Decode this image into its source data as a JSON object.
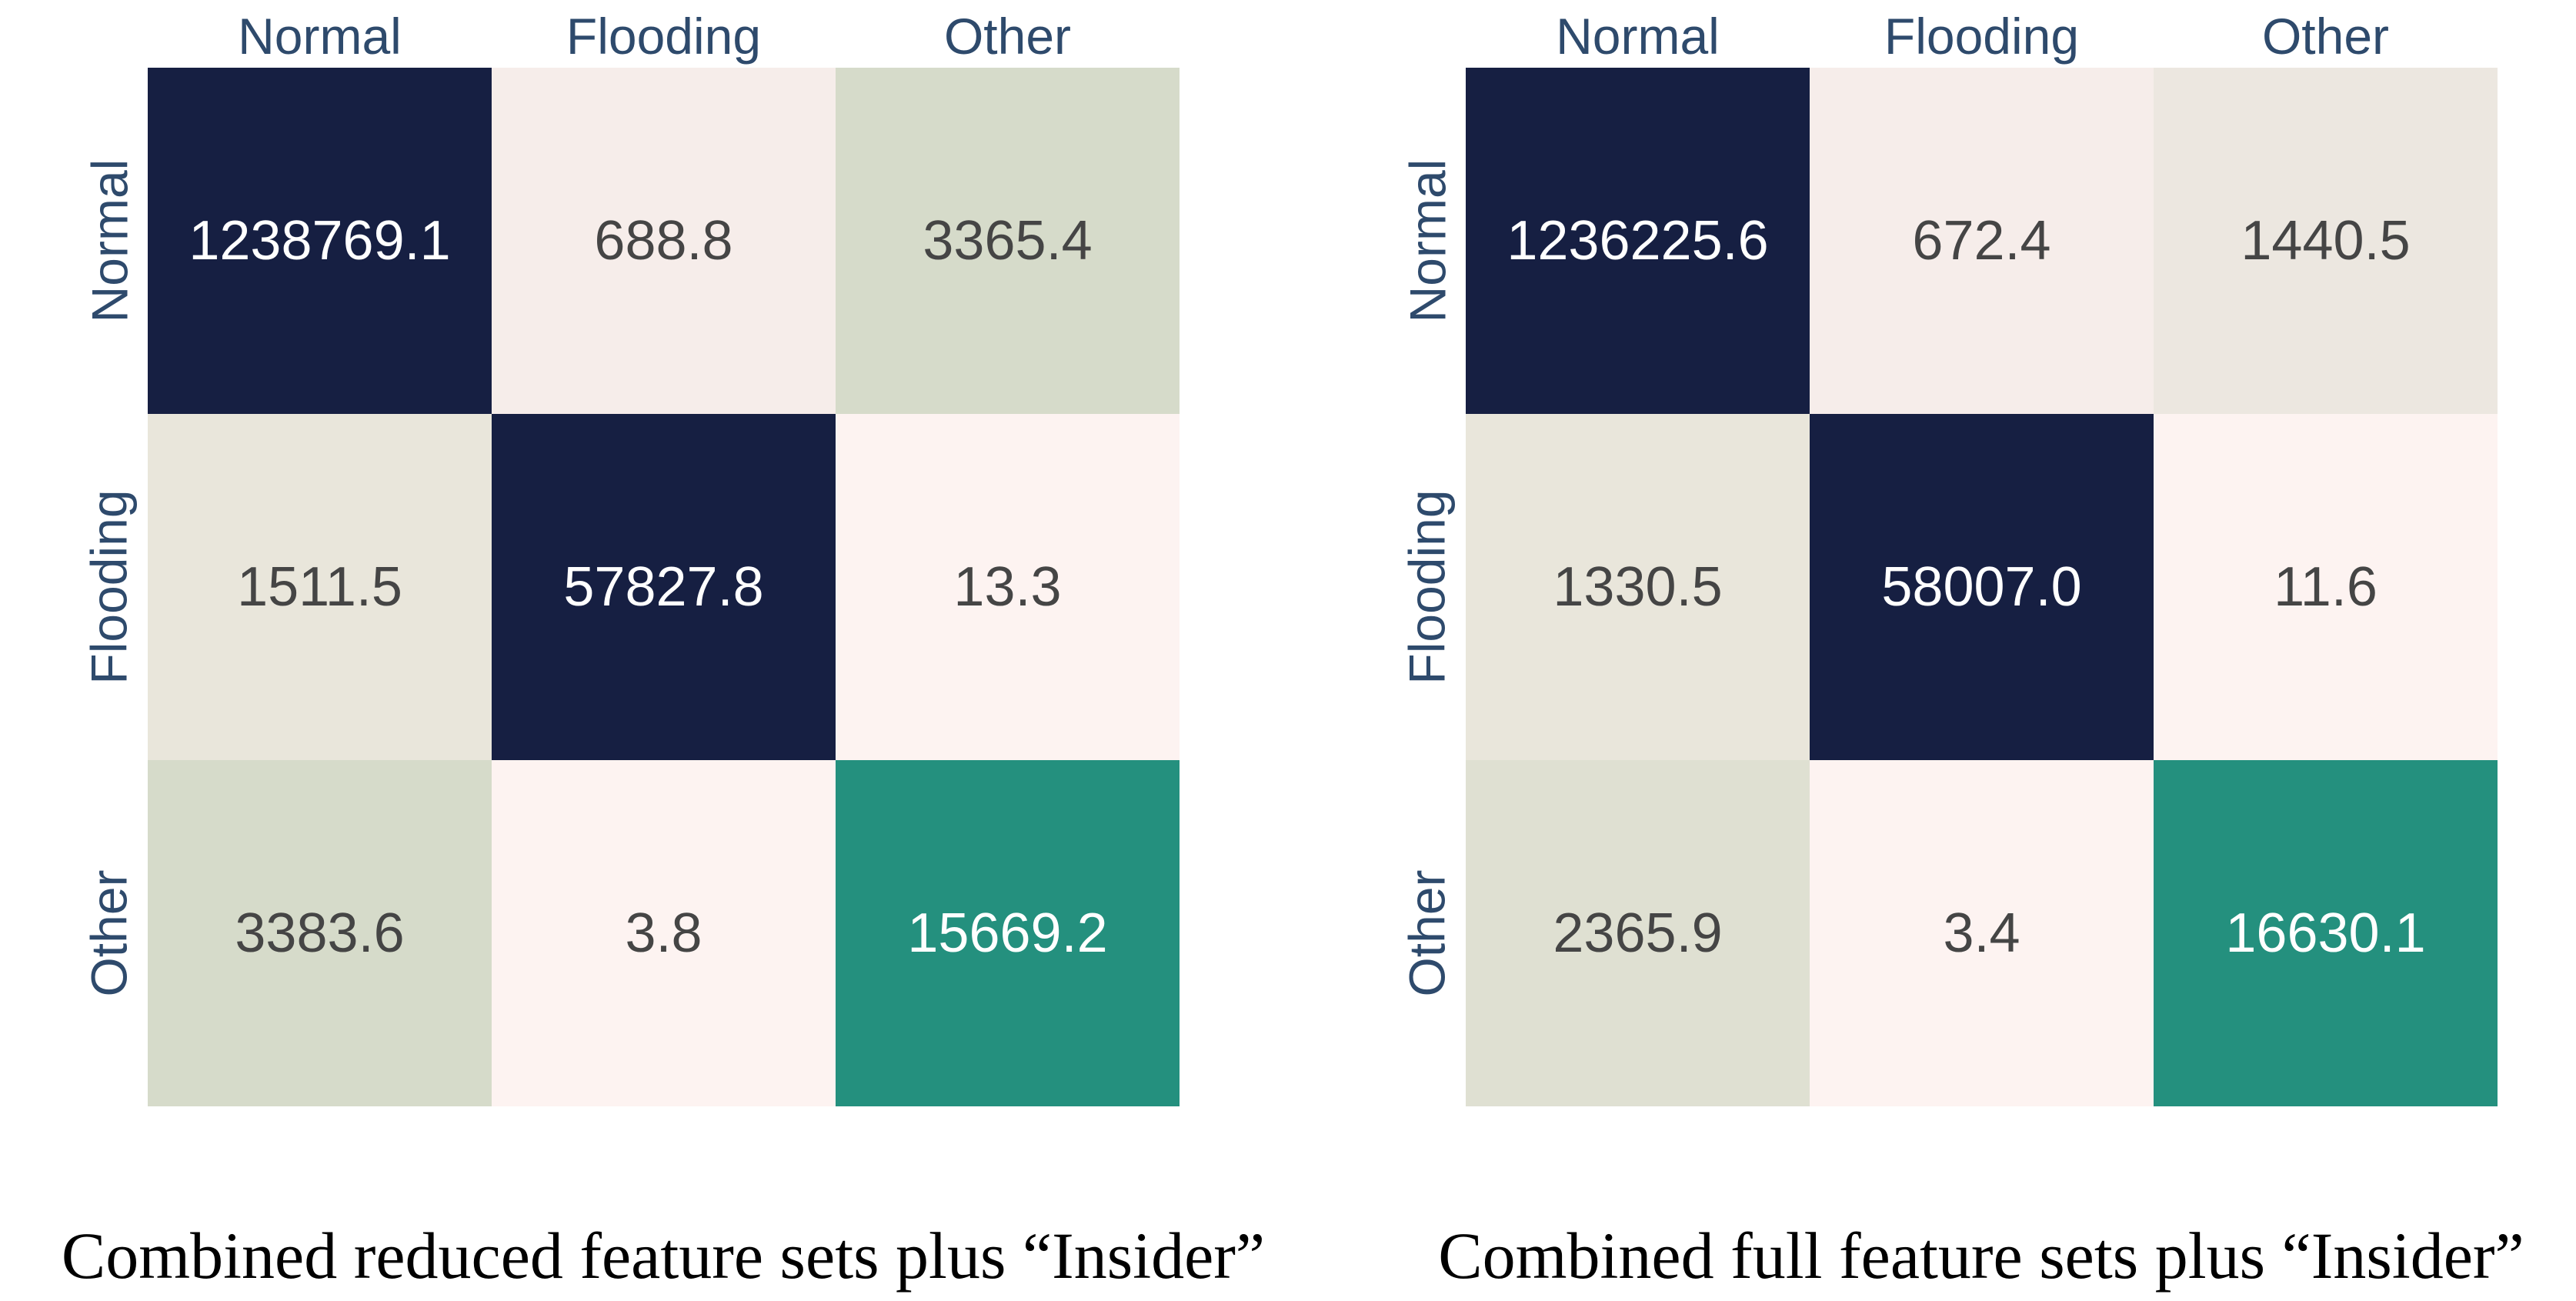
{
  "palette": {
    "background": "#ffffff",
    "navy": "#161f42",
    "teal": "#24907e",
    "axis_label_color": "#2e4a6c",
    "value_text_dark": "#454545",
    "value_text_light": "#ffffff",
    "caption_color": "#000000"
  },
  "panels": [
    {
      "caption": "Combined reduced feature sets plus “Insider”",
      "col_labels": [
        "Normal",
        "Flooding",
        "Other"
      ],
      "row_labels": [
        "Normal",
        "Flooding",
        "Other"
      ],
      "cells": [
        {
          "label": "1238769.1",
          "bg": "#161f42",
          "fg": "#ffffff"
        },
        {
          "label": "688.8",
          "bg": "#f6edea",
          "fg": "#454545"
        },
        {
          "label": "3365.4",
          "bg": "#d6dbca",
          "fg": "#454545"
        },
        {
          "label": "1511.5",
          "bg": "#e9e6db",
          "fg": "#454545"
        },
        {
          "label": "57827.8",
          "bg": "#161f42",
          "fg": "#ffffff"
        },
        {
          "label": "13.3",
          "bg": "#fdf3f1",
          "fg": "#454545"
        },
        {
          "label": "3383.6",
          "bg": "#d6dbca",
          "fg": "#454545"
        },
        {
          "label": "3.8",
          "bg": "#fdf3f1",
          "fg": "#454545"
        },
        {
          "label": "15669.2",
          "bg": "#24907e",
          "fg": "#ffffff"
        }
      ]
    },
    {
      "caption": "Combined full feature sets plus “Insider”",
      "col_labels": [
        "Normal",
        "Flooding",
        "Other"
      ],
      "row_labels": [
        "Normal",
        "Flooding",
        "Other"
      ],
      "cells": [
        {
          "label": "1236225.6",
          "bg": "#161f42",
          "fg": "#ffffff"
        },
        {
          "label": "672.4",
          "bg": "#f6edea",
          "fg": "#454545"
        },
        {
          "label": "1440.5",
          "bg": "#ece7e0",
          "fg": "#454545"
        },
        {
          "label": "1330.5",
          "bg": "#e9e6db",
          "fg": "#454545"
        },
        {
          "label": "58007.0",
          "bg": "#161f42",
          "fg": "#ffffff"
        },
        {
          "label": "11.6",
          "bg": "#fdf3f1",
          "fg": "#454545"
        },
        {
          "label": "2365.9",
          "bg": "#dfe0d2",
          "fg": "#454545"
        },
        {
          "label": "3.4",
          "bg": "#fdf3f1",
          "fg": "#454545"
        },
        {
          "label": "16630.1",
          "bg": "#24907e",
          "fg": "#ffffff"
        }
      ]
    }
  ],
  "chart_data": [
    {
      "type": "heatmap",
      "title": "Combined reduced feature sets plus “Insider”",
      "x_categories": [
        "Normal",
        "Flooding",
        "Other"
      ],
      "y_categories": [
        "Normal",
        "Flooding",
        "Other"
      ],
      "values": [
        [
          1238769.1,
          688.8,
          3365.4
        ],
        [
          1511.5,
          57827.8,
          13.3
        ],
        [
          3383.6,
          3.8,
          15669.2
        ]
      ],
      "legend": "none",
      "grid": "off",
      "colormap_note": "dark navy = highest in row scale, teal = high, light pink/beige/sage = low"
    },
    {
      "type": "heatmap",
      "title": "Combined full feature sets plus “Insider”",
      "x_categories": [
        "Normal",
        "Flooding",
        "Other"
      ],
      "y_categories": [
        "Normal",
        "Flooding",
        "Other"
      ],
      "values": [
        [
          1236225.6,
          672.4,
          1440.5
        ],
        [
          1330.5,
          58007.0,
          11.6
        ],
        [
          2365.9,
          3.4,
          16630.1
        ]
      ],
      "legend": "none",
      "grid": "off",
      "colormap_note": "dark navy = highest in row scale, teal = high, light pink/beige/sage = low"
    }
  ]
}
